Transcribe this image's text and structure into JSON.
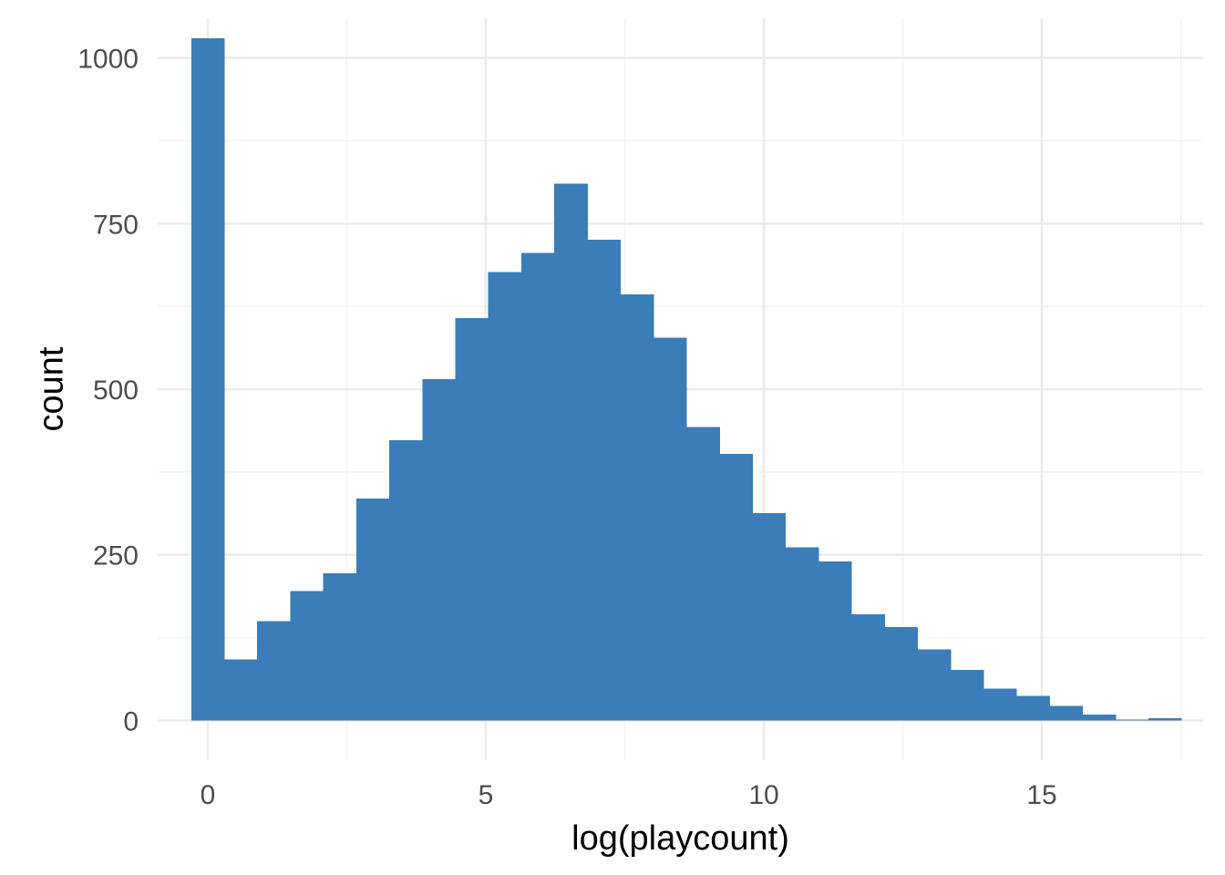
{
  "chart_data": {
    "type": "bar",
    "subtype": "histogram",
    "title": "",
    "xlabel": "log(playcount)",
    "ylabel": "count",
    "xlim": [
      -0.9,
      17.9
    ],
    "ylim": [
      -60,
      1060
    ],
    "x_ticks": [
      0,
      5,
      10,
      15
    ],
    "x_tick_labels": [
      "0",
      "5",
      "10",
      "15"
    ],
    "x_minor_ticks": [
      2.5,
      7.5,
      12.5,
      17.5
    ],
    "y_ticks": [
      0,
      250,
      500,
      750,
      1000
    ],
    "y_tick_labels": [
      "0",
      "250",
      "500",
      "750",
      "1000"
    ],
    "y_minor_ticks": [
      125,
      375,
      625,
      875
    ],
    "bin_width": 0.5935,
    "bins": [
      {
        "x_min": -0.297,
        "x_max": 0.297,
        "count": 1030
      },
      {
        "x_min": 0.297,
        "x_max": 0.89,
        "count": 92
      },
      {
        "x_min": 0.89,
        "x_max": 1.484,
        "count": 150
      },
      {
        "x_min": 1.484,
        "x_max": 2.077,
        "count": 195
      },
      {
        "x_min": 2.077,
        "x_max": 2.671,
        "count": 222
      },
      {
        "x_min": 2.671,
        "x_max": 3.264,
        "count": 335
      },
      {
        "x_min": 3.264,
        "x_max": 3.858,
        "count": 423
      },
      {
        "x_min": 3.858,
        "x_max": 4.451,
        "count": 515
      },
      {
        "x_min": 4.451,
        "x_max": 5.045,
        "count": 607
      },
      {
        "x_min": 5.045,
        "x_max": 5.638,
        "count": 677
      },
      {
        "x_min": 5.638,
        "x_max": 6.232,
        "count": 706
      },
      {
        "x_min": 6.232,
        "x_max": 6.825,
        "count": 810
      },
      {
        "x_min": 6.825,
        "x_max": 7.419,
        "count": 726
      },
      {
        "x_min": 7.419,
        "x_max": 8.012,
        "count": 643
      },
      {
        "x_min": 8.012,
        "x_max": 8.606,
        "count": 578
      },
      {
        "x_min": 8.606,
        "x_max": 9.2,
        "count": 443
      },
      {
        "x_min": 9.2,
        "x_max": 9.793,
        "count": 402
      },
      {
        "x_min": 9.793,
        "x_max": 10.387,
        "count": 313
      },
      {
        "x_min": 10.387,
        "x_max": 10.98,
        "count": 261
      },
      {
        "x_min": 10.98,
        "x_max": 11.574,
        "count": 240
      },
      {
        "x_min": 11.574,
        "x_max": 12.167,
        "count": 160
      },
      {
        "x_min": 12.167,
        "x_max": 12.761,
        "count": 141
      },
      {
        "x_min": 12.761,
        "x_max": 13.354,
        "count": 107
      },
      {
        "x_min": 13.354,
        "x_max": 13.948,
        "count": 76
      },
      {
        "x_min": 13.948,
        "x_max": 14.541,
        "count": 48
      },
      {
        "x_min": 14.541,
        "x_max": 15.135,
        "count": 37
      },
      {
        "x_min": 15.135,
        "x_max": 15.728,
        "count": 22
      },
      {
        "x_min": 15.728,
        "x_max": 16.322,
        "count": 9
      },
      {
        "x_min": 16.322,
        "x_max": 16.915,
        "count": 1
      },
      {
        "x_min": 16.915,
        "x_max": 17.509,
        "count": 3
      }
    ],
    "grid": true,
    "legend": "none",
    "bar_color": "#3a7db8",
    "grid_color": "#ebebeb",
    "background": "#ffffff"
  }
}
